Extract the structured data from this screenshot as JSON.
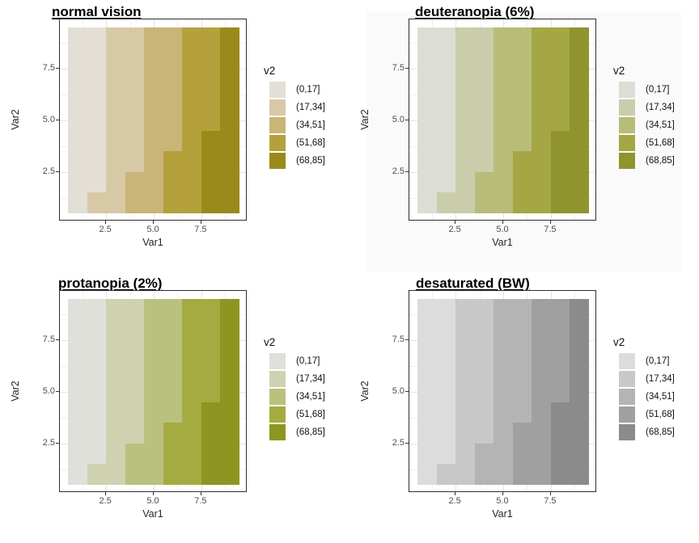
{
  "page": {
    "background": "#ffffff",
    "simulated_panel_background": "#fafafa"
  },
  "panels": [
    {
      "title": "normal vision",
      "palette": [
        "#e3dfd7",
        "#d7c9a6",
        "#c8b577",
        "#b4a13c",
        "#9a8a1a"
      ]
    },
    {
      "title": "deuteranopia (6%)",
      "palette": [
        "#dcded5",
        "#cacdab",
        "#b8bc79",
        "#a4a743",
        "#8f942e"
      ]
    },
    {
      "title": "protanopia (2%)",
      "palette": [
        "#dfe0d9",
        "#ced2b0",
        "#bac07e",
        "#a3ab41",
        "#8d9620"
      ]
    },
    {
      "title": "desaturated (BW)",
      "palette": [
        "#dcdcdc",
        "#c8c8c8",
        "#b4b4b4",
        "#a0a0a0",
        "#8b8b8b"
      ]
    }
  ],
  "axes": {
    "x_title": "Var1",
    "y_title": "Var2",
    "x_ticks": [
      "2.5",
      "5.0",
      "7.5"
    ],
    "y_ticks": [
      "2.5",
      "5.0",
      "7.5"
    ],
    "x_tick_values": [
      2.5,
      5.0,
      7.5
    ],
    "y_tick_values": [
      2.5,
      5.0,
      7.5
    ]
  },
  "legend": {
    "title": "v2",
    "labels": [
      "(0,17]",
      "(17,34]",
      "(34,51]",
      "(51,68]",
      "(68,85]"
    ]
  },
  "chart_data": {
    "type": "heatmap",
    "title": "2x2 grid of identical tile charts under color-vision-deficiency simulations",
    "panel_titles": [
      "normal vision",
      "deuteranopia (6%)",
      "protanopia (2%)",
      "desaturated (BW)"
    ],
    "x": [
      1,
      2,
      3,
      4,
      5,
      6,
      7,
      8,
      9
    ],
    "y": [
      1,
      2,
      3,
      4,
      5,
      6,
      7,
      8,
      9
    ],
    "xlabel": "Var1",
    "ylabel": "Var2",
    "xlim": [
      0.05,
      9.95
    ],
    "ylim": [
      0.05,
      9.95
    ],
    "fill_variable": "v2",
    "v2_formula": "v2 = 9*Var1 - Var2 + 1",
    "v2_rows_by_Var2_ascending": [
      [
        9,
        18,
        27,
        36,
        45,
        54,
        63,
        72,
        81
      ],
      [
        8,
        17,
        26,
        35,
        44,
        53,
        62,
        71,
        80
      ],
      [
        7,
        16,
        25,
        34,
        43,
        52,
        61,
        70,
        79
      ],
      [
        6,
        15,
        24,
        33,
        42,
        51,
        60,
        69,
        78
      ],
      [
        5,
        14,
        23,
        32,
        41,
        50,
        59,
        68,
        77
      ],
      [
        4,
        13,
        22,
        31,
        40,
        49,
        58,
        67,
        76
      ],
      [
        3,
        12,
        21,
        30,
        39,
        48,
        57,
        66,
        75
      ],
      [
        2,
        11,
        20,
        29,
        38,
        47,
        56,
        65,
        74
      ],
      [
        1,
        10,
        19,
        28,
        37,
        46,
        55,
        64,
        73
      ]
    ],
    "bin_breaks": [
      0,
      17,
      34,
      51,
      68,
      85
    ],
    "bin_labels": [
      "(0,17]",
      "(17,34]",
      "(34,51]",
      "(51,68]",
      "(68,85]"
    ],
    "palettes": {
      "normal vision": [
        "#e3dfd7",
        "#d7c9a6",
        "#c8b577",
        "#b4a13c",
        "#9a8a1a"
      ],
      "deuteranopia (6%)": [
        "#dcded5",
        "#cacdab",
        "#b8bc79",
        "#a4a743",
        "#8f942e"
      ],
      "protanopia (2%)": [
        "#dfe0d9",
        "#ced2b0",
        "#bac07e",
        "#a3ab41",
        "#8d9620"
      ],
      "desaturated (BW)": [
        "#dcdcdc",
        "#c8c8c8",
        "#b4b4b4",
        "#a0a0a0",
        "#8b8b8b"
      ]
    },
    "grid": "major gridlines at 2.5/5.0/7.5, minor at 1.25/3.75/6.25/8.75, visible only in panel expansion gap",
    "legend_position": "right"
  }
}
